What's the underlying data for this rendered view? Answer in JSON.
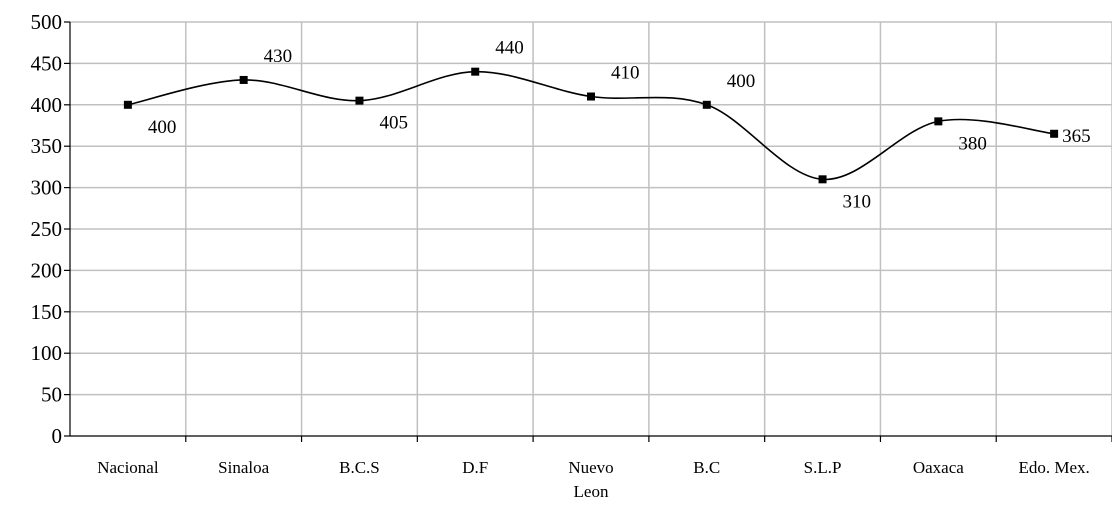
{
  "chart_data": {
    "type": "line",
    "categories": [
      "Nacional",
      "Sinaloa",
      "B.C.S",
      "D.F",
      "Nuevo Leon",
      "B.C",
      "S.L.P",
      "Oaxaca",
      "Edo. Mex."
    ],
    "category_lines": [
      [
        "Nacional"
      ],
      [
        "Sinaloa"
      ],
      [
        "B.C.S"
      ],
      [
        "D.F"
      ],
      [
        "Nuevo",
        "Leon"
      ],
      [
        "B.C"
      ],
      [
        "S.L.P"
      ],
      [
        "Oaxaca"
      ],
      [
        "Edo. Mex."
      ]
    ],
    "values": [
      400,
      430,
      405,
      440,
      410,
      400,
      310,
      380,
      365
    ],
    "data_labels": [
      "400",
      "430",
      "405",
      "440",
      "410",
      "400",
      "310",
      "380",
      "365"
    ],
    "label_position": [
      "below",
      "above",
      "below",
      "above",
      "above",
      "above",
      "below",
      "below",
      "right"
    ],
    "yticks": [
      "0",
      "50",
      "100",
      "150",
      "200",
      "250",
      "300",
      "350",
      "400",
      "450",
      "500"
    ],
    "ylim": [
      0,
      500
    ],
    "title": "",
    "xlabel": "",
    "ylabel": "",
    "grid": true,
    "line_color": "#000000",
    "grid_color": "#c0c0c0"
  }
}
